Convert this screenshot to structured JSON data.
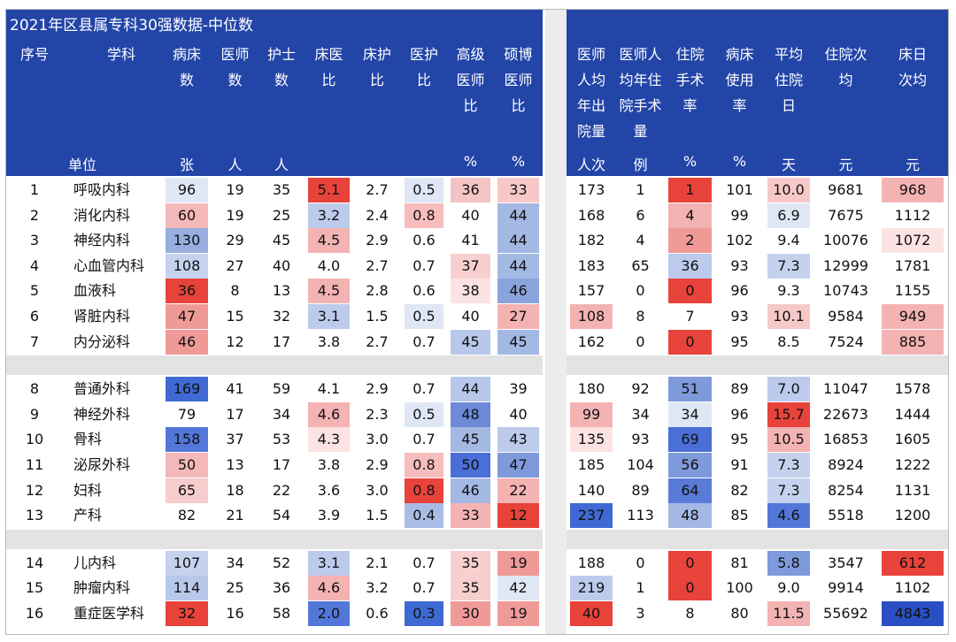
{
  "title": "2021年区县属专科30强数据-中位数",
  "left_headers": [
    {
      "key": "seq",
      "label": "序号",
      "unit": ""
    },
    {
      "key": "subject",
      "label": "学科",
      "unit": "单位"
    },
    {
      "key": "beds",
      "label": "病床\n数",
      "unit": "张"
    },
    {
      "key": "doctors",
      "label": "医师\n数",
      "unit": "人"
    },
    {
      "key": "nurses",
      "label": "护士\n数",
      "unit": "人"
    },
    {
      "key": "bed_doc",
      "label": "床医\n比",
      "unit": ""
    },
    {
      "key": "bed_nurse",
      "label": "床护\n比",
      "unit": ""
    },
    {
      "key": "doc_nurse",
      "label": "医护\n比",
      "unit": ""
    },
    {
      "key": "senior",
      "label": "高级\n医师\n比",
      "unit": "%"
    },
    {
      "key": "master_phd",
      "label": "硕博\n医师\n比",
      "unit": "%"
    }
  ],
  "right_headers": [
    {
      "key": "discharges",
      "label": "医师\n人均\n年出\n院量",
      "unit": "人次"
    },
    {
      "key": "surgeries",
      "label": "医师人\n均年住\n院手术\n量",
      "unit": "例"
    },
    {
      "key": "surgery_rate",
      "label": "住院\n手术\n率",
      "unit": "%"
    },
    {
      "key": "bed_usage",
      "label": "病床\n使用\n率",
      "unit": "%"
    },
    {
      "key": "avg_days",
      "label": "平均\n住院\n日",
      "unit": "天"
    },
    {
      "key": "cost_per_stay",
      "label": "住院次\n均",
      "unit": "元"
    },
    {
      "key": "cost_per_day",
      "label": "床日\n次均",
      "unit": "元"
    }
  ],
  "rows": [
    {
      "seq": "1",
      "subject": "呼吸内科",
      "beds": "96",
      "doctors": "19",
      "nurses": "35",
      "bed_doc": "5.1",
      "bed_nurse": "2.7",
      "doc_nurse": "0.5",
      "senior": "36",
      "master_phd": "33",
      "discharges": "173",
      "surgeries": "1",
      "surgery_rate": "1",
      "bed_usage": "101",
      "avg_days": "10.0",
      "cost_per_stay": "9681",
      "cost_per_day": "968"
    },
    {
      "seq": "2",
      "subject": "消化内科",
      "beds": "60",
      "doctors": "19",
      "nurses": "25",
      "bed_doc": "3.2",
      "bed_nurse": "2.4",
      "doc_nurse": "0.8",
      "senior": "40",
      "master_phd": "44",
      "discharges": "168",
      "surgeries": "6",
      "surgery_rate": "4",
      "bed_usage": "99",
      "avg_days": "6.9",
      "cost_per_stay": "7675",
      "cost_per_day": "1112"
    },
    {
      "seq": "3",
      "subject": "神经内科",
      "beds": "130",
      "doctors": "29",
      "nurses": "45",
      "bed_doc": "4.5",
      "bed_nurse": "2.9",
      "doc_nurse": "0.6",
      "senior": "41",
      "master_phd": "44",
      "discharges": "182",
      "surgeries": "4",
      "surgery_rate": "2",
      "bed_usage": "102",
      "avg_days": "9.4",
      "cost_per_stay": "10076",
      "cost_per_day": "1072"
    },
    {
      "seq": "4",
      "subject": "心血管内科",
      "beds": "108",
      "doctors": "27",
      "nurses": "40",
      "bed_doc": "4.0",
      "bed_nurse": "2.7",
      "doc_nurse": "0.7",
      "senior": "37",
      "master_phd": "44",
      "discharges": "183",
      "surgeries": "65",
      "surgery_rate": "36",
      "bed_usage": "93",
      "avg_days": "7.3",
      "cost_per_stay": "12999",
      "cost_per_day": "1781"
    },
    {
      "seq": "5",
      "subject": "血液科",
      "beds": "36",
      "doctors": "8",
      "nurses": "13",
      "bed_doc": "4.5",
      "bed_nurse": "2.8",
      "doc_nurse": "0.6",
      "senior": "38",
      "master_phd": "46",
      "discharges": "157",
      "surgeries": "0",
      "surgery_rate": "0",
      "bed_usage": "96",
      "avg_days": "9.3",
      "cost_per_stay": "10743",
      "cost_per_day": "1155"
    },
    {
      "seq": "6",
      "subject": "肾脏内科",
      "beds": "47",
      "doctors": "15",
      "nurses": "32",
      "bed_doc": "3.1",
      "bed_nurse": "1.5",
      "doc_nurse": "0.5",
      "senior": "40",
      "master_phd": "27",
      "discharges": "108",
      "surgeries": "8",
      "surgery_rate": "7",
      "bed_usage": "93",
      "avg_days": "10.1",
      "cost_per_stay": "9584",
      "cost_per_day": "949"
    },
    {
      "seq": "7",
      "subject": "内分泌科",
      "beds": "46",
      "doctors": "12",
      "nurses": "17",
      "bed_doc": "3.8",
      "bed_nurse": "2.7",
      "doc_nurse": "0.7",
      "senior": "45",
      "master_phd": "45",
      "discharges": "162",
      "surgeries": "0",
      "surgery_rate": "0",
      "bed_usage": "95",
      "avg_days": "8.5",
      "cost_per_stay": "7524",
      "cost_per_day": "885"
    },
    {
      "seq": "8",
      "subject": "普通外科",
      "beds": "169",
      "doctors": "41",
      "nurses": "59",
      "bed_doc": "4.1",
      "bed_nurse": "2.9",
      "doc_nurse": "0.7",
      "senior": "44",
      "master_phd": "39",
      "discharges": "180",
      "surgeries": "92",
      "surgery_rate": "51",
      "bed_usage": "89",
      "avg_days": "7.0",
      "cost_per_stay": "11047",
      "cost_per_day": "1578"
    },
    {
      "seq": "9",
      "subject": "神经外科",
      "beds": "79",
      "doctors": "17",
      "nurses": "34",
      "bed_doc": "4.6",
      "bed_nurse": "2.3",
      "doc_nurse": "0.5",
      "senior": "48",
      "master_phd": "40",
      "discharges": "99",
      "surgeries": "34",
      "surgery_rate": "34",
      "bed_usage": "96",
      "avg_days": "15.7",
      "cost_per_stay": "22673",
      "cost_per_day": "1444"
    },
    {
      "seq": "10",
      "subject": "骨科",
      "beds": "158",
      "doctors": "37",
      "nurses": "53",
      "bed_doc": "4.3",
      "bed_nurse": "3.0",
      "doc_nurse": "0.7",
      "senior": "45",
      "master_phd": "43",
      "discharges": "135",
      "surgeries": "93",
      "surgery_rate": "69",
      "bed_usage": "95",
      "avg_days": "10.5",
      "cost_per_stay": "16853",
      "cost_per_day": "1605"
    },
    {
      "seq": "11",
      "subject": "泌尿外科",
      "beds": "50",
      "doctors": "13",
      "nurses": "17",
      "bed_doc": "3.8",
      "bed_nurse": "2.9",
      "doc_nurse": "0.8",
      "senior": "50",
      "master_phd": "47",
      "discharges": "185",
      "surgeries": "104",
      "surgery_rate": "56",
      "bed_usage": "91",
      "avg_days": "7.3",
      "cost_per_stay": "8924",
      "cost_per_day": "1222"
    },
    {
      "seq": "12",
      "subject": "妇科",
      "beds": "65",
      "doctors": "18",
      "nurses": "22",
      "bed_doc": "3.6",
      "bed_nurse": "3.0",
      "doc_nurse": "0.8",
      "senior": "46",
      "master_phd": "22",
      "discharges": "140",
      "surgeries": "89",
      "surgery_rate": "64",
      "bed_usage": "82",
      "avg_days": "7.3",
      "cost_per_stay": "8254",
      "cost_per_day": "1131"
    },
    {
      "seq": "13",
      "subject": "产科",
      "beds": "82",
      "doctors": "21",
      "nurses": "54",
      "bed_doc": "3.9",
      "bed_nurse": "1.5",
      "doc_nurse": "0.4",
      "senior": "33",
      "master_phd": "12",
      "discharges": "237",
      "surgeries": "113",
      "surgery_rate": "48",
      "bed_usage": "85",
      "avg_days": "4.6",
      "cost_per_stay": "5518",
      "cost_per_day": "1200"
    },
    {
      "seq": "14",
      "subject": "儿内科",
      "beds": "107",
      "doctors": "34",
      "nurses": "52",
      "bed_doc": "3.1",
      "bed_nurse": "2.1",
      "doc_nurse": "0.7",
      "senior": "35",
      "master_phd": "19",
      "discharges": "188",
      "surgeries": "0",
      "surgery_rate": "0",
      "bed_usage": "81",
      "avg_days": "5.8",
      "cost_per_stay": "3547",
      "cost_per_day": "612"
    },
    {
      "seq": "15",
      "subject": "肿瘤内科",
      "beds": "114",
      "doctors": "25",
      "nurses": "36",
      "bed_doc": "4.6",
      "bed_nurse": "3.2",
      "doc_nurse": "0.7",
      "senior": "35",
      "master_phd": "42",
      "discharges": "219",
      "surgeries": "1",
      "surgery_rate": "0",
      "bed_usage": "100",
      "avg_days": "9.0",
      "cost_per_stay": "9914",
      "cost_per_day": "1102"
    },
    {
      "seq": "16",
      "subject": "重症医学科",
      "beds": "32",
      "doctors": "16",
      "nurses": "58",
      "bed_doc": "2.0",
      "bed_nurse": "0.6",
      "doc_nurse": "0.3",
      "senior": "30",
      "master_phd": "19",
      "discharges": "40",
      "surgeries": "3",
      "surgery_rate": "8",
      "bed_usage": "80",
      "avg_days": "11.5",
      "cost_per_stay": "55692",
      "cost_per_day": "4843"
    }
  ],
  "heat_colors": {
    "beds": [
      "#dfe7f5",
      "#f4b8b8",
      "#98aee0",
      "#c4d2ee",
      "#e8433b",
      "#f09a98",
      "#f09a98",
      "#3f6ad4",
      "#ffffff",
      "#5377d9",
      "#f4b8b8",
      "#f7cccc",
      "#ffffff",
      "#c4d2ee",
      "#b8c8eb",
      "#e8433b"
    ],
    "bed_doc": [
      "#e8433b",
      "#bccbeb",
      "#f4b3b3",
      "#ffffff",
      "#f4b3b3",
      "#bccbeb",
      "#ffffff",
      "#ffffff",
      "#f4b3b3",
      "#fbe3e3",
      "#ffffff",
      "#ffffff",
      "#ffffff",
      "#bccbeb",
      "#f4b3b3",
      "#5377d9"
    ],
    "doc_nurse": [
      "#dfe7f5",
      "#f7bcbc",
      "#ffffff",
      "#ffffff",
      "#ffffff",
      "#dfe7f5",
      "#ffffff",
      "#ffffff",
      "#dfe7f5",
      "#ffffff",
      "#f7bcbc",
      "#e8433b",
      "#a9bce6",
      "#ffffff",
      "#ffffff",
      "#3f6ad4"
    ],
    "senior": [
      "#f4c4c4",
      "#ffffff",
      "#ffffff",
      "#f7cfcf",
      "#fbe3e3",
      "#ffffff",
      "#b8c8eb",
      "#b8c8eb",
      "#6d8ad9",
      "#a4b8e4",
      "#4a6fd6",
      "#a4b8e4",
      "#f4b3b3",
      "#f7cfcf",
      "#f7cfcf",
      "#f09a98"
    ],
    "master_phd": [
      "#f7c8c8",
      "#a4b8e4",
      "#a4b8e4",
      "#a4b8e4",
      "#8aa3dc",
      "#f4b3b3",
      "#a4b8e4",
      "#ffffff",
      "#ffffff",
      "#bccbeb",
      "#7f9adb",
      "#f4b3b3",
      "#e8433b",
      "#f09a98",
      "#dfe7f5",
      "#f09a98"
    ],
    "discharges": [
      "#ffffff",
      "#ffffff",
      "#ffffff",
      "#ffffff",
      "#ffffff",
      "#f4b3b3",
      "#ffffff",
      "#ffffff",
      "#f4b3b3",
      "#fbe3e3",
      "#ffffff",
      "#ffffff",
      "#3f6ad4",
      "#ffffff",
      "#bccbeb",
      "#e8433b"
    ],
    "surgery_rate": [
      "#e8433b",
      "#f4b3b3",
      "#f09a98",
      "#bccbeb",
      "#e8433b",
      "#ffffff",
      "#e8433b",
      "#7f9adb",
      "#dfe7f5",
      "#4a6fd6",
      "#7f9adb",
      "#5a7ad8",
      "#a4b8e4",
      "#e8433b",
      "#e8433b",
      "#ffffff"
    ],
    "avg_days": [
      "#f7c8c8",
      "#dfe7f5",
      "#ffffff",
      "#c4d2ee",
      "#ffffff",
      "#f7c8c8",
      "#ffffff",
      "#bccbeb",
      "#e8433b",
      "#f4b3b3",
      "#c4d2ee",
      "#c4d2ee",
      "#5377d9",
      "#7f9adb",
      "#ffffff",
      "#f4b3b3"
    ],
    "cost_per_day": [
      "#f4b3b3",
      "#ffffff",
      "#fbe3e3",
      "#ffffff",
      "#ffffff",
      "#f4b3b3",
      "#f4b3b3",
      "#ffffff",
      "#ffffff",
      "#ffffff",
      "#ffffff",
      "#ffffff",
      "#ffffff",
      "#e8433b",
      "#ffffff",
      "#2a4fc4"
    ]
  }
}
